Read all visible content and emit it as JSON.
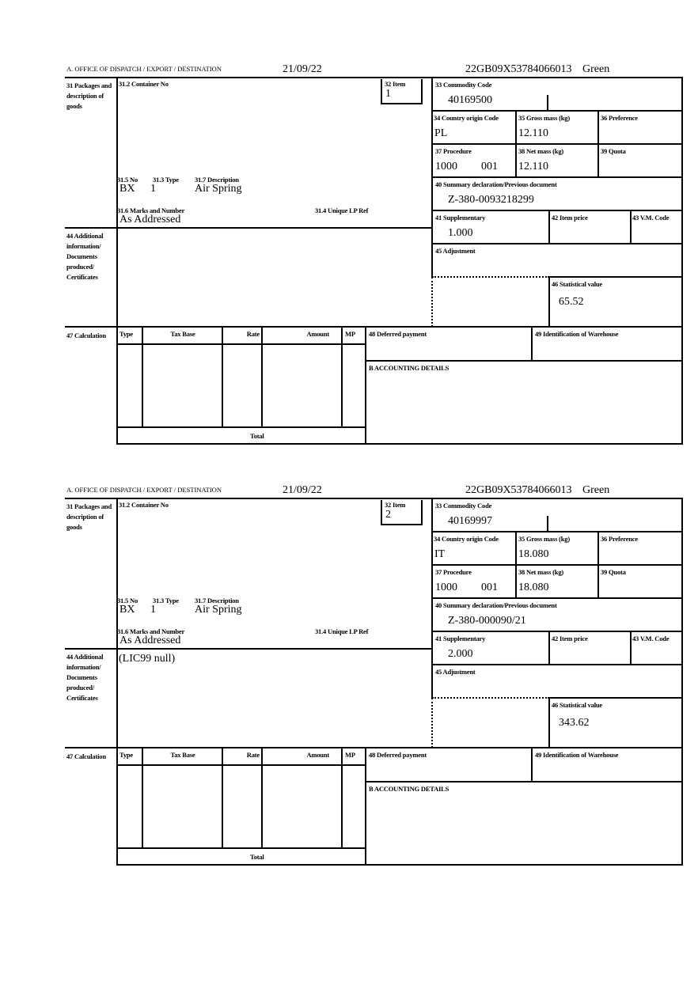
{
  "labels": {
    "office": "A.  OFFICE OF DISPATCH / EXPORT / DESTINATION",
    "packages": "31 Packages and description of goods",
    "container": "31.2 Container No",
    "item": "32 Item",
    "commodity": "33 Commodity Code",
    "country": "34 Country origin Code",
    "gross": "35 Gross mass (kg)",
    "preference": "36 Preference",
    "procedure": "37 Procedure",
    "net": "38 Net mass (kg)",
    "quota": "39 Quota",
    "summary": "40 Summary declaration/Previous document",
    "supplementary": "41 Supplementary",
    "item_price": "42 Item price",
    "vm_code": "43 V.M. Code",
    "adjustment": "45 Adjustment",
    "statistical": "46 Statistical value",
    "no": "31.5 No",
    "type": "31.3 Type",
    "description": "31.7 Description",
    "marks": "31.6 Marks and Number",
    "unique_ref": "31.4 Unique LP Ref",
    "additional": "44 Additional information/ Documents produced/ Certificates",
    "calculation": "47 Calculation",
    "calc_type": "Type",
    "calc_tax_base": "Tax Base",
    "calc_rate": "Rate",
    "calc_amount": "Amount",
    "calc_mp": "MP",
    "deferred": "48 Deferred payment",
    "warehouse": "49 Identification of Warehouse",
    "accounting": "B ACCOUNTING DETAILS",
    "total": "Total"
  },
  "forms": [
    {
      "date": "21/09/22",
      "reference": "22GB09X53784066013",
      "copy": "Green",
      "item": "1",
      "commodity_code": "40169500",
      "country_origin": "PL",
      "gross_mass": "12.110",
      "procedure": "1000",
      "procedure_suffix": "001",
      "net_mass": "12.110",
      "previous_document": "Z-380-0093218299",
      "supplementary": "1.000",
      "statistical_value": "65.52",
      "package_no": "BX",
      "package_type": "1",
      "description": "Air Spring",
      "marks": "As Addressed",
      "additional_info": ""
    },
    {
      "date": "21/09/22",
      "reference": "22GB09X53784066013",
      "copy": "Green",
      "item": "2",
      "commodity_code": "40169997",
      "country_origin": "IT",
      "gross_mass": "18.080",
      "procedure": "1000",
      "procedure_suffix": "001",
      "net_mass": "18.080",
      "previous_document": "Z-380-000090/21",
      "supplementary": "2.000",
      "statistical_value": "343.62",
      "package_no": "BX",
      "package_type": "1",
      "description": "Air Spring",
      "marks": "As Addressed",
      "additional_info": "(LIC99 null)"
    }
  ]
}
